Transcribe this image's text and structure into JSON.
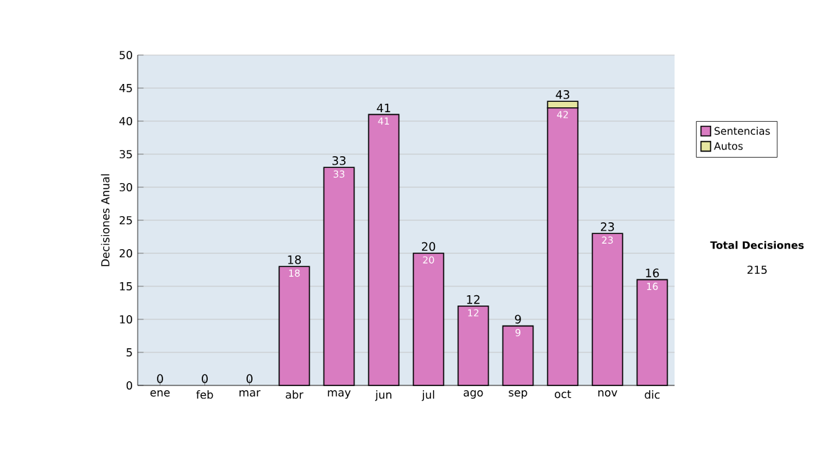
{
  "chart_data": {
    "type": "bar",
    "ylabel": "Decisiones Anual",
    "categories": [
      "ene",
      "feb",
      "mar",
      "abr",
      "may",
      "jun",
      "jul",
      "ago",
      "sep",
      "oct",
      "nov",
      "dic"
    ],
    "stacked": true,
    "series": [
      {
        "name": "Sentencias",
        "color": "#d97cc1",
        "values": [
          0,
          0,
          0,
          18,
          33,
          41,
          20,
          12,
          9,
          42,
          23,
          16
        ],
        "value_labels": [
          null,
          null,
          null,
          "18",
          "33",
          "41",
          "20",
          "12",
          "9",
          "42",
          "23",
          "16"
        ]
      },
      {
        "name": "Autos",
        "color": "#e6e6a0",
        "values": [
          0,
          0,
          0,
          0,
          0,
          0,
          0,
          0,
          0,
          1,
          0,
          0
        ]
      }
    ],
    "totals": [
      "0",
      "0",
      "0",
      "18",
      "33",
      "41",
      "20",
      "12",
      "9",
      "43",
      "23",
      "16"
    ],
    "ylim": [
      0,
      50
    ],
    "yticks": [
      0,
      5,
      10,
      15,
      20,
      25,
      30,
      35,
      40,
      45,
      50
    ],
    "grid": "y",
    "legend": "right",
    "annotations": [
      "Total Decisiones",
      "215"
    ]
  }
}
